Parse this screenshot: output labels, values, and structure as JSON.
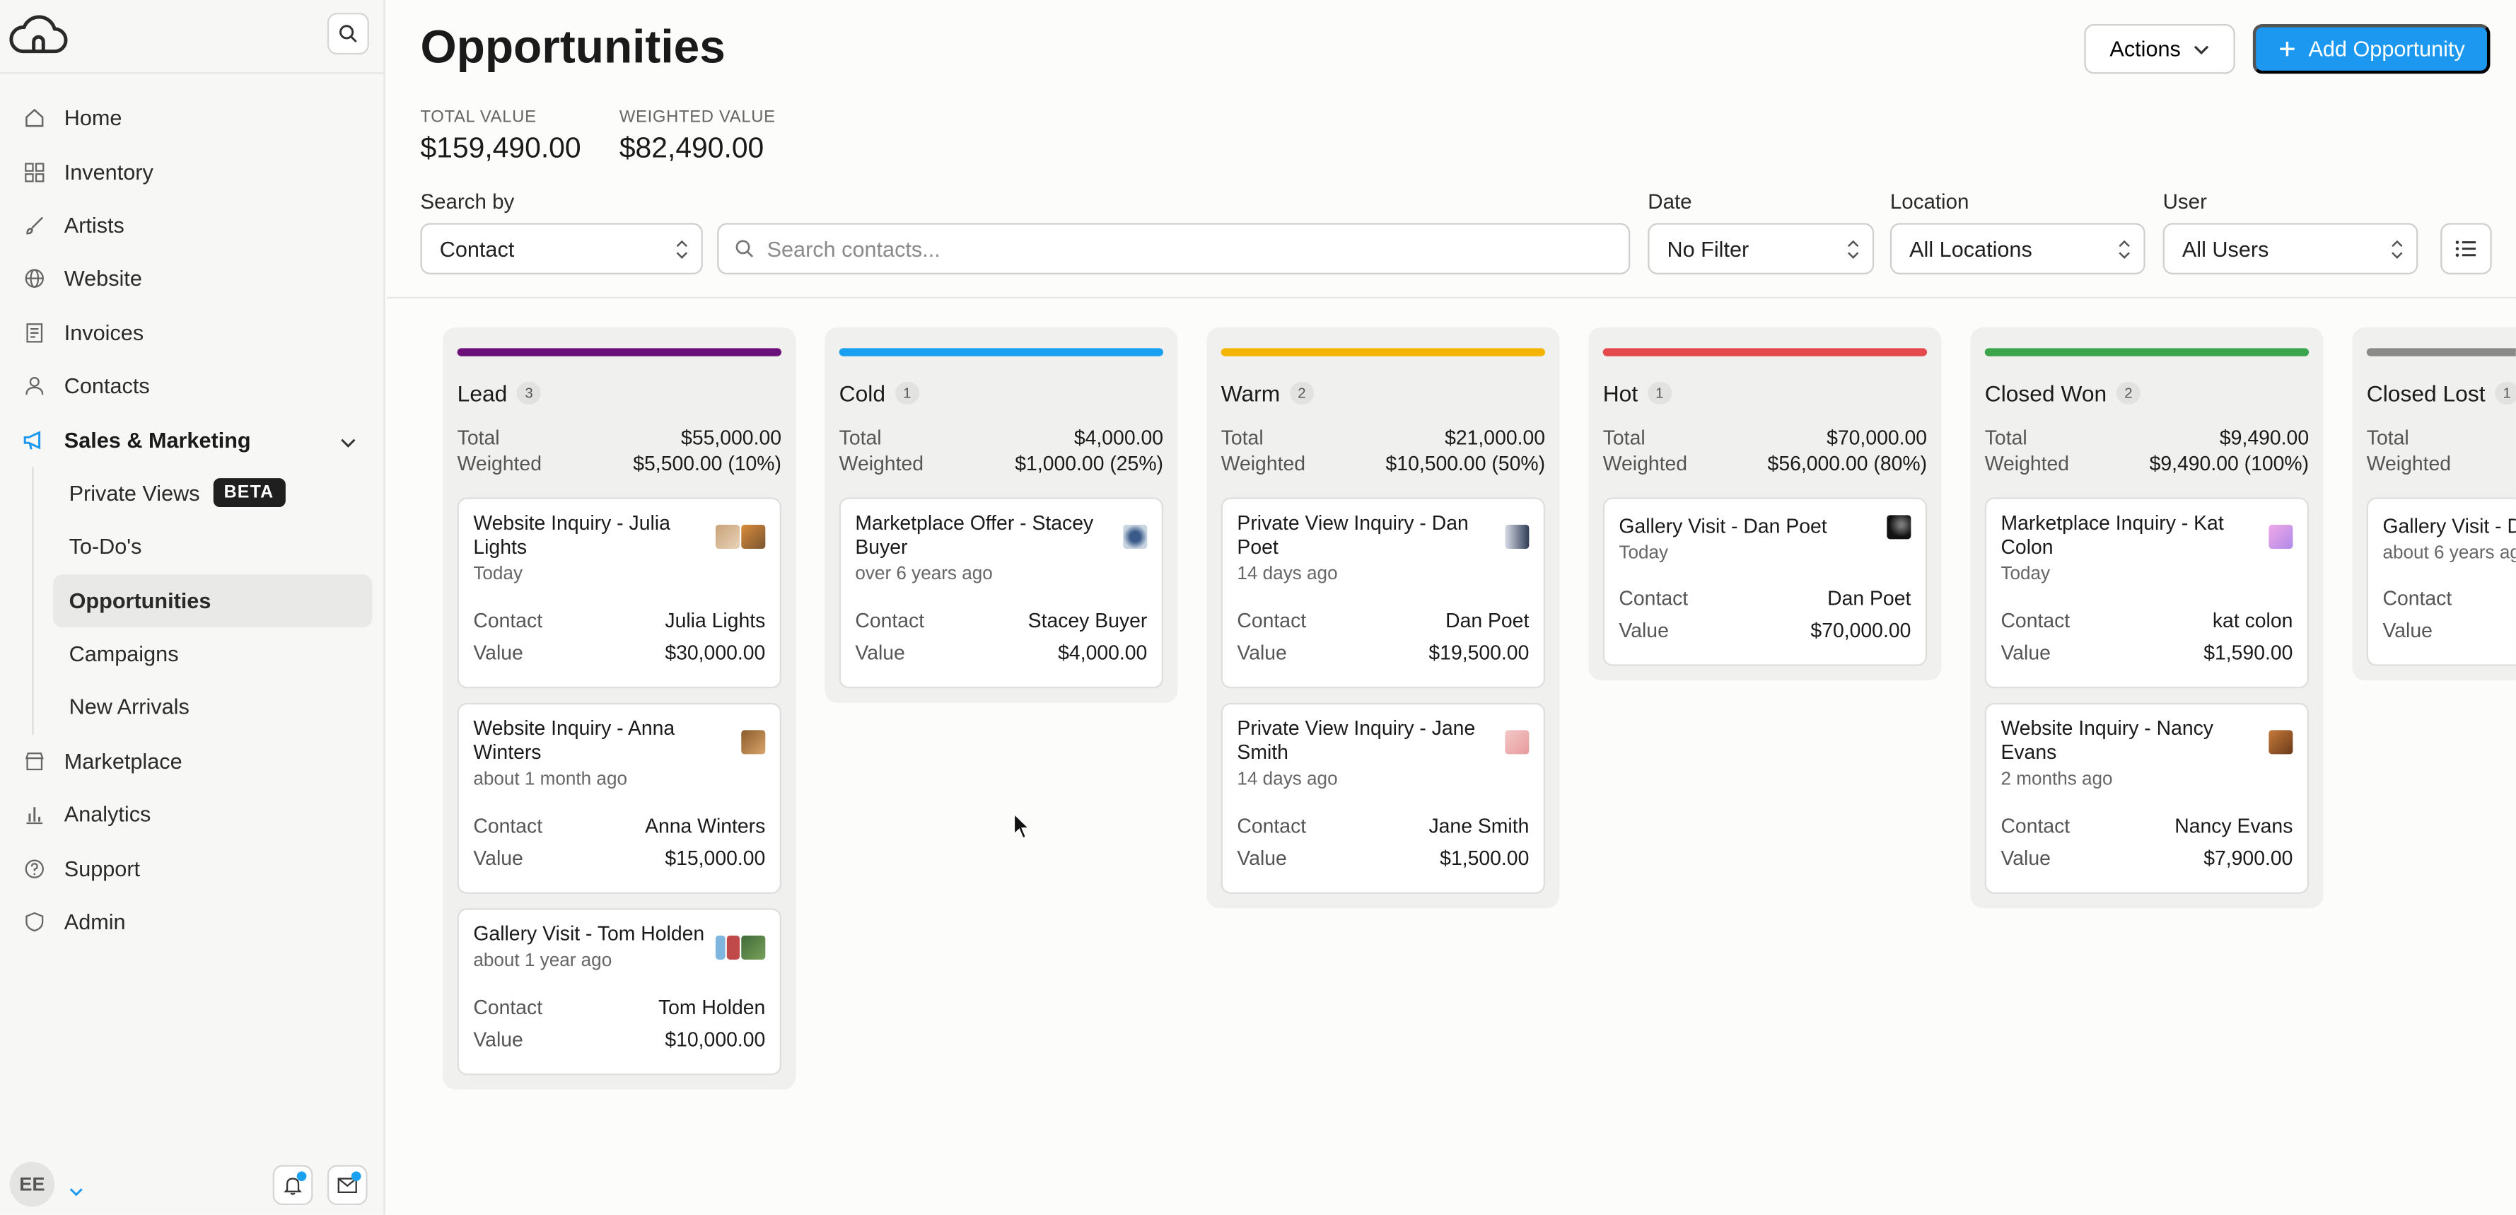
{
  "sidebar": {
    "nav": [
      {
        "label": "Home",
        "icon": "home-icon"
      },
      {
        "label": "Inventory",
        "icon": "grid-icon"
      },
      {
        "label": "Artists",
        "icon": "brush-icon"
      },
      {
        "label": "Website",
        "icon": "globe-icon"
      },
      {
        "label": "Invoices",
        "icon": "document-icon"
      },
      {
        "label": "Contacts",
        "icon": "user-icon"
      }
    ],
    "section": {
      "label": "Sales & Marketing",
      "icon": "megaphone-icon"
    },
    "sub": [
      {
        "label": "Private Views",
        "badge": "BETA"
      },
      {
        "label": "To-Do's"
      },
      {
        "label": "Opportunities"
      },
      {
        "label": "Campaigns"
      },
      {
        "label": "New Arrivals"
      }
    ],
    "nav2": [
      {
        "label": "Marketplace",
        "icon": "store-icon"
      },
      {
        "label": "Analytics",
        "icon": "chart-icon"
      },
      {
        "label": "Support",
        "icon": "help-icon"
      },
      {
        "label": "Admin",
        "icon": "shield-icon"
      }
    ],
    "avatar": "EE"
  },
  "header": {
    "title": "Opportunities",
    "actions_label": "Actions",
    "add_label": "Add Opportunity",
    "total_label": "TOTAL VALUE",
    "total_value": "$159,490.00",
    "weighted_label": "WEIGHTED VALUE",
    "weighted_value": "$82,490.00"
  },
  "filters": {
    "search_by_label": "Search by",
    "search_by_value": "Contact",
    "search_placeholder": "Search contacts...",
    "date_label": "Date",
    "date_value": "No Filter",
    "location_label": "Location",
    "location_value": "All Locations",
    "user_label": "User",
    "user_value": "All Users"
  },
  "labels": {
    "total": "Total",
    "weighted": "Weighted",
    "contact": "Contact",
    "value": "Value"
  },
  "columns": [
    {
      "name": "Lead",
      "count": "3",
      "color": "#6b0f7a",
      "total": "$55,000.00",
      "weighted": "$5,500.00 (10%)",
      "cards": [
        {
          "title": "Website Inquiry - Julia Lights",
          "date": "Today",
          "contact": "Julia Lights",
          "value": "$30,000.00"
        },
        {
          "title": "Website Inquiry - Anna Winters",
          "date": "about 1 month ago",
          "contact": "Anna Winters",
          "value": "$15,000.00"
        },
        {
          "title": "Gallery Visit - Tom Holden",
          "date": "about 1 year ago",
          "contact": "Tom Holden",
          "value": "$10,000.00"
        }
      ]
    },
    {
      "name": "Cold",
      "count": "1",
      "color": "#1aa0f0",
      "total": "$4,000.00",
      "weighted": "$1,000.00 (25%)",
      "cards": [
        {
          "title": "Marketplace Offer - Stacey Buyer",
          "date": "over 6 years ago",
          "contact": "Stacey Buyer",
          "value": "$4,000.00"
        }
      ]
    },
    {
      "name": "Warm",
      "count": "2",
      "color": "#f5b400",
      "total": "$21,000.00",
      "weighted": "$10,500.00 (50%)",
      "cards": [
        {
          "title": "Private View Inquiry - Dan Poet",
          "date": "14 days ago",
          "contact": "Dan Poet",
          "value": "$19,500.00"
        },
        {
          "title": "Private View Inquiry - Jane Smith",
          "date": "14 days ago",
          "contact": "Jane Smith",
          "value": "$1,500.00"
        }
      ]
    },
    {
      "name": "Hot",
      "count": "1",
      "color": "#e5484d",
      "total": "$70,000.00",
      "weighted": "$56,000.00 (80%)",
      "cards": [
        {
          "title": "Gallery Visit - Dan Poet",
          "date": "Today",
          "contact": "Dan Poet",
          "value": "$70,000.00"
        }
      ]
    },
    {
      "name": "Closed Won",
      "count": "2",
      "color": "#3aa54a",
      "total": "$9,490.00",
      "weighted": "$9,490.00 (100%)",
      "cards": [
        {
          "title": "Marketplace Inquiry - Kat Colon",
          "date": "Today",
          "contact": "kat colon",
          "value": "$1,590.00"
        },
        {
          "title": "Website Inquiry - Nancy Evans",
          "date": "2 months ago",
          "contact": "Nancy Evans",
          "value": "$7,900.00"
        }
      ]
    },
    {
      "name": "Closed Lost",
      "count": "1",
      "color": "#8a8a8a",
      "total": "",
      "weighted": "",
      "cards": [
        {
          "title": "Gallery Visit - D",
          "date": "about 6 years ag",
          "contact": "",
          "value": ""
        }
      ]
    }
  ]
}
